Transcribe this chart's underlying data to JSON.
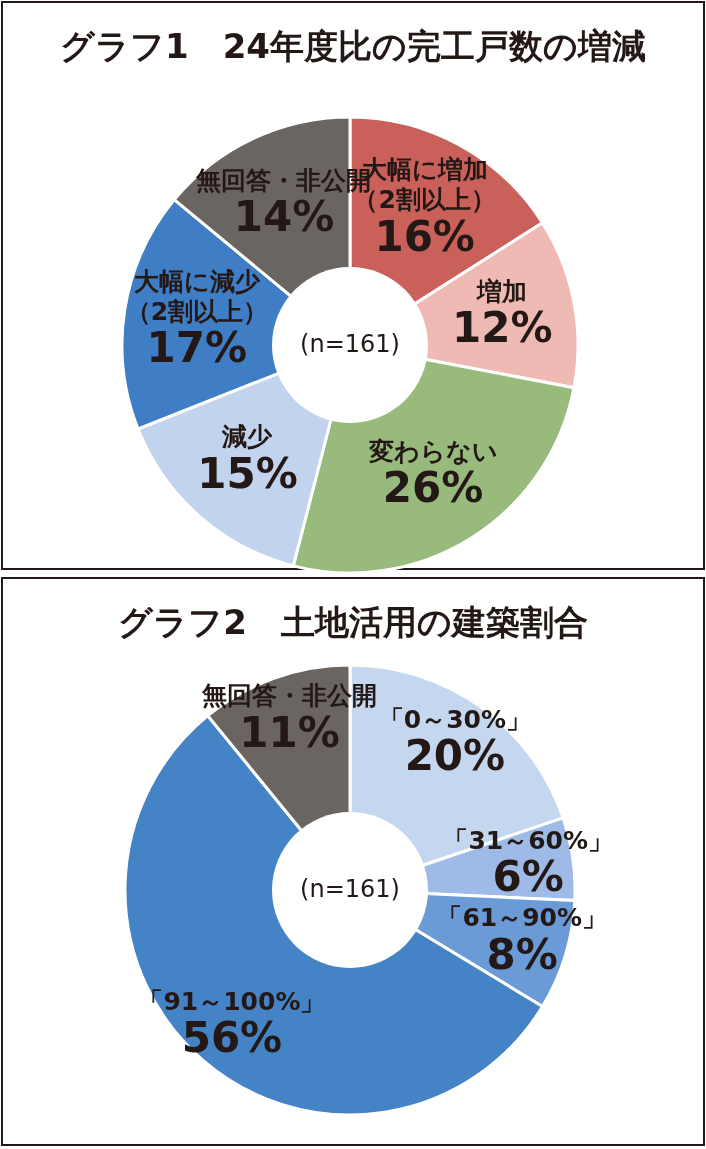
{
  "chart_data": [
    {
      "type": "donut",
      "title": "グラフ1　24年度比の完工戸数の増減",
      "categories": [
        "大幅に増加（2割以上）",
        "増加",
        "変わらない",
        "減少",
        "大幅に減少（2割以上）",
        "無回答・非公開"
      ],
      "values": [
        16,
        12,
        26,
        15,
        17,
        14
      ],
      "value_labels": [
        "16%",
        "12%",
        "26%",
        "15%",
        "17%",
        "14%"
      ],
      "colors": [
        "#c9605a",
        "#eebab3",
        "#98bb7d",
        "#c2d3ee",
        "#3f7dc4",
        "#6b6562"
      ],
      "annotations": [
        "(n=161)"
      ]
    },
    {
      "type": "donut",
      "title": "グラフ2　土地活用の建築割合",
      "categories": [
        "「0～30%」",
        "「31～60%」",
        "「61～90%」",
        "「91～100%」",
        "無回答・非公開"
      ],
      "values": [
        20,
        6,
        8,
        56,
        11
      ],
      "value_labels": [
        "20%",
        "6%",
        "8%",
        "56%",
        "11%"
      ],
      "colors": [
        "#c5d6ef",
        "#9dbbe6",
        "#6a9bd6",
        "#4484c6",
        "#6b6562"
      ],
      "annotations": [
        "(n=161)"
      ]
    }
  ]
}
